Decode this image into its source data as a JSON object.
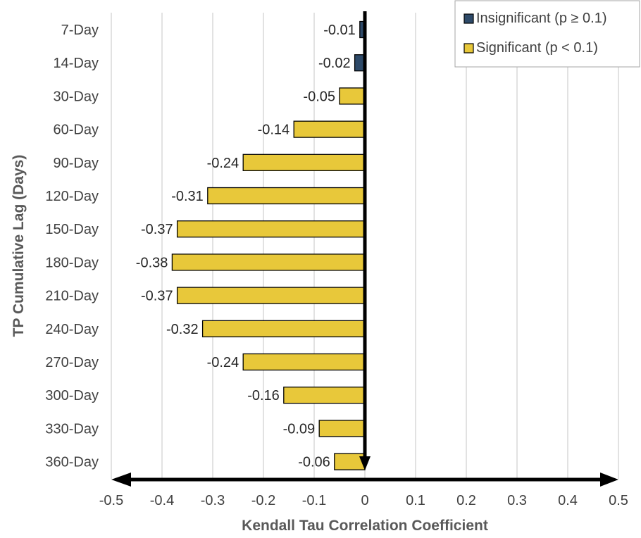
{
  "chart_data": {
    "type": "bar",
    "orientation": "horizontal",
    "title": "",
    "xlabel": "Kendall Tau Correlation Coefficient",
    "ylabel": "TP Cumulative Lag (Days)",
    "xlim": [
      -0.5,
      0.5
    ],
    "xticks": [
      "-0.5",
      "-0.4",
      "-0.3",
      "-0.2",
      "-0.1",
      "0",
      "0.1",
      "0.2",
      "0.3",
      "0.4",
      "0.5"
    ],
    "categories": [
      "7-Day",
      "14-Day",
      "30-Day",
      "60-Day",
      "90-Day",
      "120-Day",
      "150-Day",
      "180-Day",
      "210-Day",
      "240-Day",
      "270-Day",
      "300-Day",
      "330-Day",
      "360-Day"
    ],
    "values": [
      -0.01,
      -0.02,
      -0.05,
      -0.14,
      -0.24,
      -0.31,
      -0.37,
      -0.38,
      -0.37,
      -0.32,
      -0.24,
      -0.16,
      -0.09,
      -0.06
    ],
    "value_labels": [
      "-0.01",
      "-0.02",
      "-0.05",
      "-0.14",
      "-0.24",
      "-0.31",
      "-0.37",
      "-0.38",
      "-0.37",
      "-0.32",
      "-0.24",
      "-0.16",
      "-0.09",
      "-0.06"
    ],
    "significance": [
      "insignificant",
      "insignificant",
      "significant",
      "significant",
      "significant",
      "significant",
      "significant",
      "significant",
      "significant",
      "significant",
      "significant",
      "significant",
      "significant",
      "significant"
    ],
    "legend": {
      "placement": "top-right",
      "entries": [
        {
          "key": "insignificant",
          "label": "Insignificant (p ≥ 0.1)",
          "color": "#2e4a69"
        },
        {
          "key": "significant",
          "label": "Significant (p < 0.1)",
          "color": "#e8c83a"
        }
      ]
    },
    "grid": "vertical"
  }
}
